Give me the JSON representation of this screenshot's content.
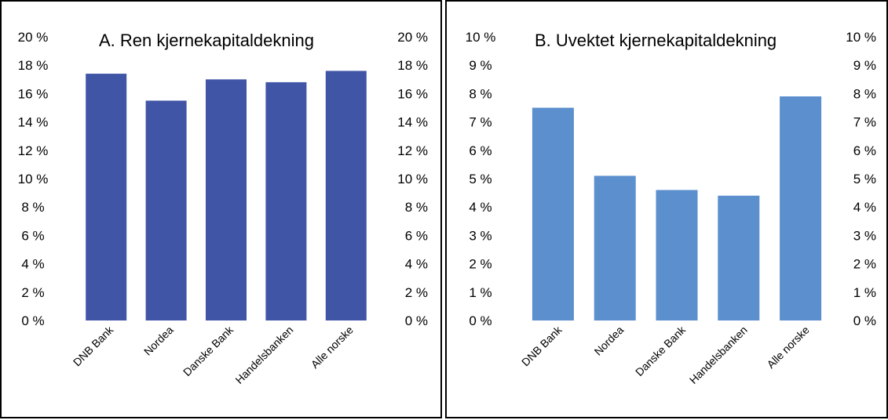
{
  "chart_data": [
    {
      "type": "bar",
      "title": "A. Ren kjernekapitaldekning",
      "categories": [
        "DNB Bank",
        "Nordea",
        "Danske Bank",
        "Handelsbanken",
        "Alle norske"
      ],
      "values": [
        17.4,
        15.5,
        17.0,
        16.8,
        17.6
      ],
      "ylim": [
        0,
        20
      ],
      "yticks": [
        "0 %",
        "2 %",
        "4 %",
        "6 %",
        "8 %",
        "10 %",
        "12 %",
        "14 %",
        "16 %",
        "18 %",
        "20 %"
      ],
      "color": "#4155A7",
      "grid": false,
      "xlabel": "",
      "ylabel": ""
    },
    {
      "type": "bar",
      "title": "B. Uvektet kjernekapitaldekning",
      "categories": [
        "DNB Bank",
        "Nordea",
        "Danske Bank",
        "Handelsbanken",
        "Alle norske"
      ],
      "values": [
        7.5,
        5.1,
        4.6,
        4.4,
        7.9
      ],
      "ylim": [
        0,
        10
      ],
      "yticks": [
        "0 %",
        "1 %",
        "2 %",
        "3 %",
        "4 %",
        "5 %",
        "6 %",
        "7 %",
        "8 %",
        "9 %",
        "10 %"
      ],
      "color": "#5B8FCE",
      "grid": false,
      "xlabel": "",
      "ylabel": ""
    }
  ]
}
